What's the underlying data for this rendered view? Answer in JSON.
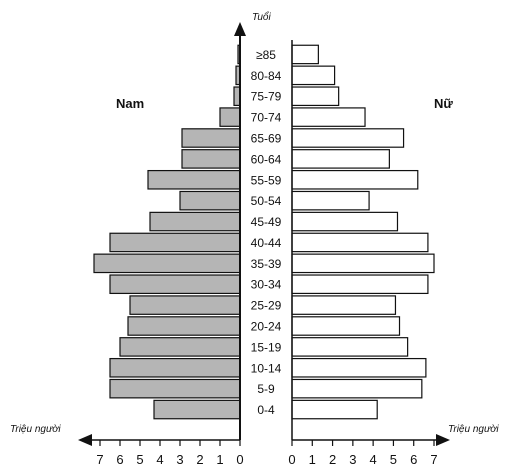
{
  "chart_data": {
    "type": "bar",
    "orientation": "horizontal",
    "layout": "population-pyramid",
    "title": "",
    "y_axis_label": "Tuổi",
    "x_axis_label_left": "Triệu người",
    "x_axis_label_right": "Triệu người",
    "categories": [
      "0-4",
      "5-9",
      "10-14",
      "15-19",
      "20-24",
      "25-29",
      "30-34",
      "35-39",
      "40-44",
      "45-49",
      "50-54",
      "55-59",
      "60-64",
      "65-69",
      "70-74",
      "75-79",
      "80-84",
      "≥85"
    ],
    "x_ticks": [
      0,
      1,
      2,
      3,
      4,
      5,
      6,
      7
    ],
    "xlim": [
      0,
      7
    ],
    "grid": false,
    "legend": "none",
    "series": [
      {
        "name": "Nam",
        "side": "left",
        "color": "#b5b5b5",
        "values": [
          4.3,
          6.5,
          6.5,
          6.0,
          5.6,
          5.5,
          6.5,
          7.3,
          6.5,
          4.5,
          3.0,
          4.6,
          2.9,
          2.9,
          1.0,
          0.3,
          0.2,
          0.1
        ]
      },
      {
        "name": "Nữ",
        "side": "right",
        "color": "#ffffff",
        "values": [
          4.2,
          6.4,
          6.6,
          5.7,
          5.3,
          5.1,
          6.7,
          7.0,
          6.7,
          5.2,
          3.8,
          6.2,
          4.8,
          5.5,
          3.6,
          2.3,
          2.1,
          1.3
        ]
      }
    ]
  }
}
